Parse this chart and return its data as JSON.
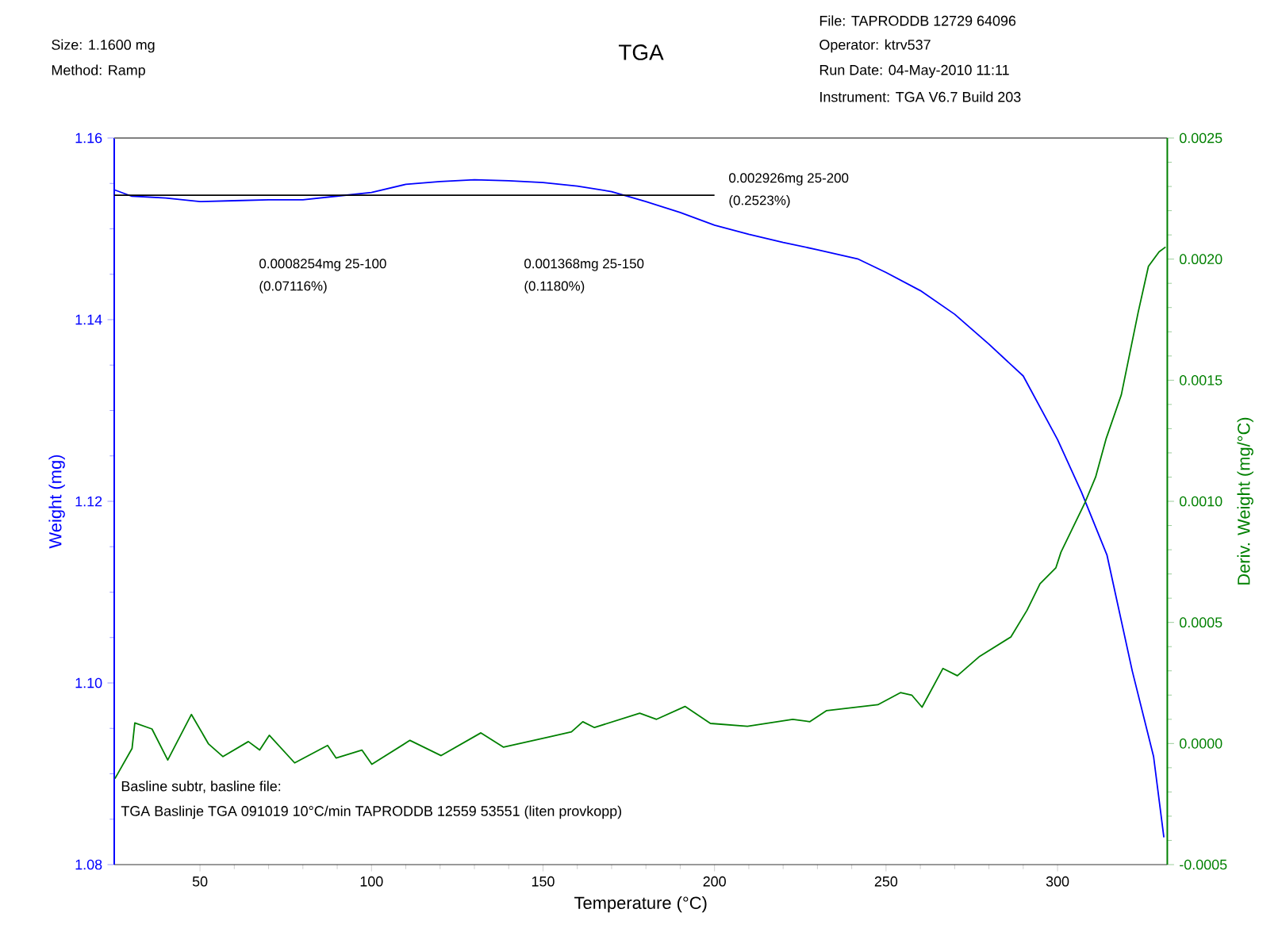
{
  "chart_data": {
    "type": "line",
    "title": "TGA",
    "xlabel": "Temperature (°C)",
    "ylabel": "Weight (mg)",
    "y2label": "Deriv. Weight (mg/°C)",
    "xlim": [
      25,
      332
    ],
    "xticks": [
      50,
      100,
      150,
      200,
      250,
      300
    ],
    "ylim": [
      1.08,
      1.16
    ],
    "yticks": [
      {
        "value": 1.08,
        "label": "1.08"
      },
      {
        "value": 1.1,
        "label": "1.10"
      },
      {
        "value": 1.12,
        "label": "1.12"
      },
      {
        "value": 1.14,
        "label": "1.14"
      },
      {
        "value": 1.16,
        "label": "1.16"
      }
    ],
    "y2lim": [
      -0.0005,
      0.0025
    ],
    "y2ticks": [
      -0.0005,
      {
        "value": 0,
        "label": "0.0000"
      },
      0.0005,
      {
        "value": 0.001,
        "label": "0.0010"
      },
      0.0015,
      {
        "value": 0.002,
        "label": "0.0020"
      },
      0.0025
    ],
    "grid": false,
    "marker": "none",
    "line_style": "solid",
    "series": [
      {
        "color": "#0000ff",
        "x": [
          25,
          30,
          40,
          50,
          60,
          70,
          80,
          90,
          100,
          110,
          120,
          130,
          140,
          150,
          160,
          170,
          180,
          190,
          200,
          210,
          220,
          230,
          241.7,
          250,
          260,
          270,
          280,
          290,
          300,
          307,
          314.4,
          321.8,
          328,
          331
        ],
        "values": [
          1.1543,
          1.1536,
          1.1534,
          1.153,
          1.1531,
          1.1532,
          1.1532,
          1.1536,
          1.154,
          1.1549,
          1.1552,
          1.1554,
          1.1553,
          1.1551,
          1.1547,
          1.1541,
          1.153,
          1.1518,
          1.1504,
          1.1494,
          1.1485,
          1.1477,
          1.1467,
          1.1452,
          1.1432,
          1.1406,
          1.1373,
          1.1338,
          1.1268,
          1.121,
          1.1141,
          1.1013,
          1.0919,
          1.083
        ]
      },
      {
        "color": "#008000",
        "axis": "y2",
        "x": [
          25.2,
          30.2,
          31,
          36,
          40.6,
          47.5,
          52.5,
          56.7,
          64.1,
          67.4,
          70.2,
          77.6,
          87.2,
          89.7,
          97.2,
          100.1,
          111.2,
          120.3,
          131.9,
          138.5,
          151.7,
          158.3,
          161.6,
          165,
          178.2,
          183.1,
          191.4,
          198.8,
          209.6,
          222.8,
          227.8,
          232.7,
          247.6,
          254.2,
          257.5,
          260.5,
          266.6,
          270.8,
          277.3,
          286.4,
          291.1,
          294.9,
          299.5,
          301,
          308,
          311.1,
          314.2,
          318.6,
          323.5,
          326.5,
          329.6,
          331.5
        ],
        "values": [
          -0.000145,
          -2e-05,
          8.5e-05,
          6e-05,
          -6.8e-05,
          0.00012,
          -2e-06,
          -5.4e-05,
          8e-06,
          -2.7e-05,
          3.4e-05,
          -8e-05,
          -8e-06,
          -6e-05,
          -2.7e-05,
          -8.6e-05,
          1.3e-05,
          -5e-05,
          4.4e-05,
          -1.5e-05,
          2.7e-05,
          4.8e-05,
          9e-05,
          6.6e-05,
          0.000125,
          0.0001,
          0.000153,
          8.3e-05,
          7.1e-05,
          0.0001,
          9e-05,
          0.000136,
          0.00016,
          0.00021,
          0.0002,
          0.00015,
          0.00031,
          0.00028,
          0.00036,
          0.00044,
          0.00055,
          0.00066,
          0.000725,
          0.00079,
          0.000995,
          0.0011,
          0.00126,
          0.00144,
          0.00178,
          0.00197,
          0.00203,
          0.00205
        ]
      },
      {
        "color": "#000000",
        "x": [
          25,
          200
        ],
        "values": [
          1.1537,
          1.1537
        ]
      }
    ],
    "annotations": [
      "Size:  1.1600 mg",
      "Method: Ramp",
      "File: TAPRODDB 12729 64096",
      "Operator: ktrv537",
      "Run Date: 04-May-2010 11:11",
      "Instrument: TGA V6.7 Build 203",
      "Basline subtr, basline file:",
      "TGA Baslinje TGA 091019 10°C/min TAPRODDB 12559 53551 (liten provkopp)",
      "0.0008254mg 25-100",
      "(0.07116%)",
      "0.001368mg 25-150",
      "(0.1180%)",
      "0.002926mg 25-200",
      "(0.2523%)"
    ]
  }
}
